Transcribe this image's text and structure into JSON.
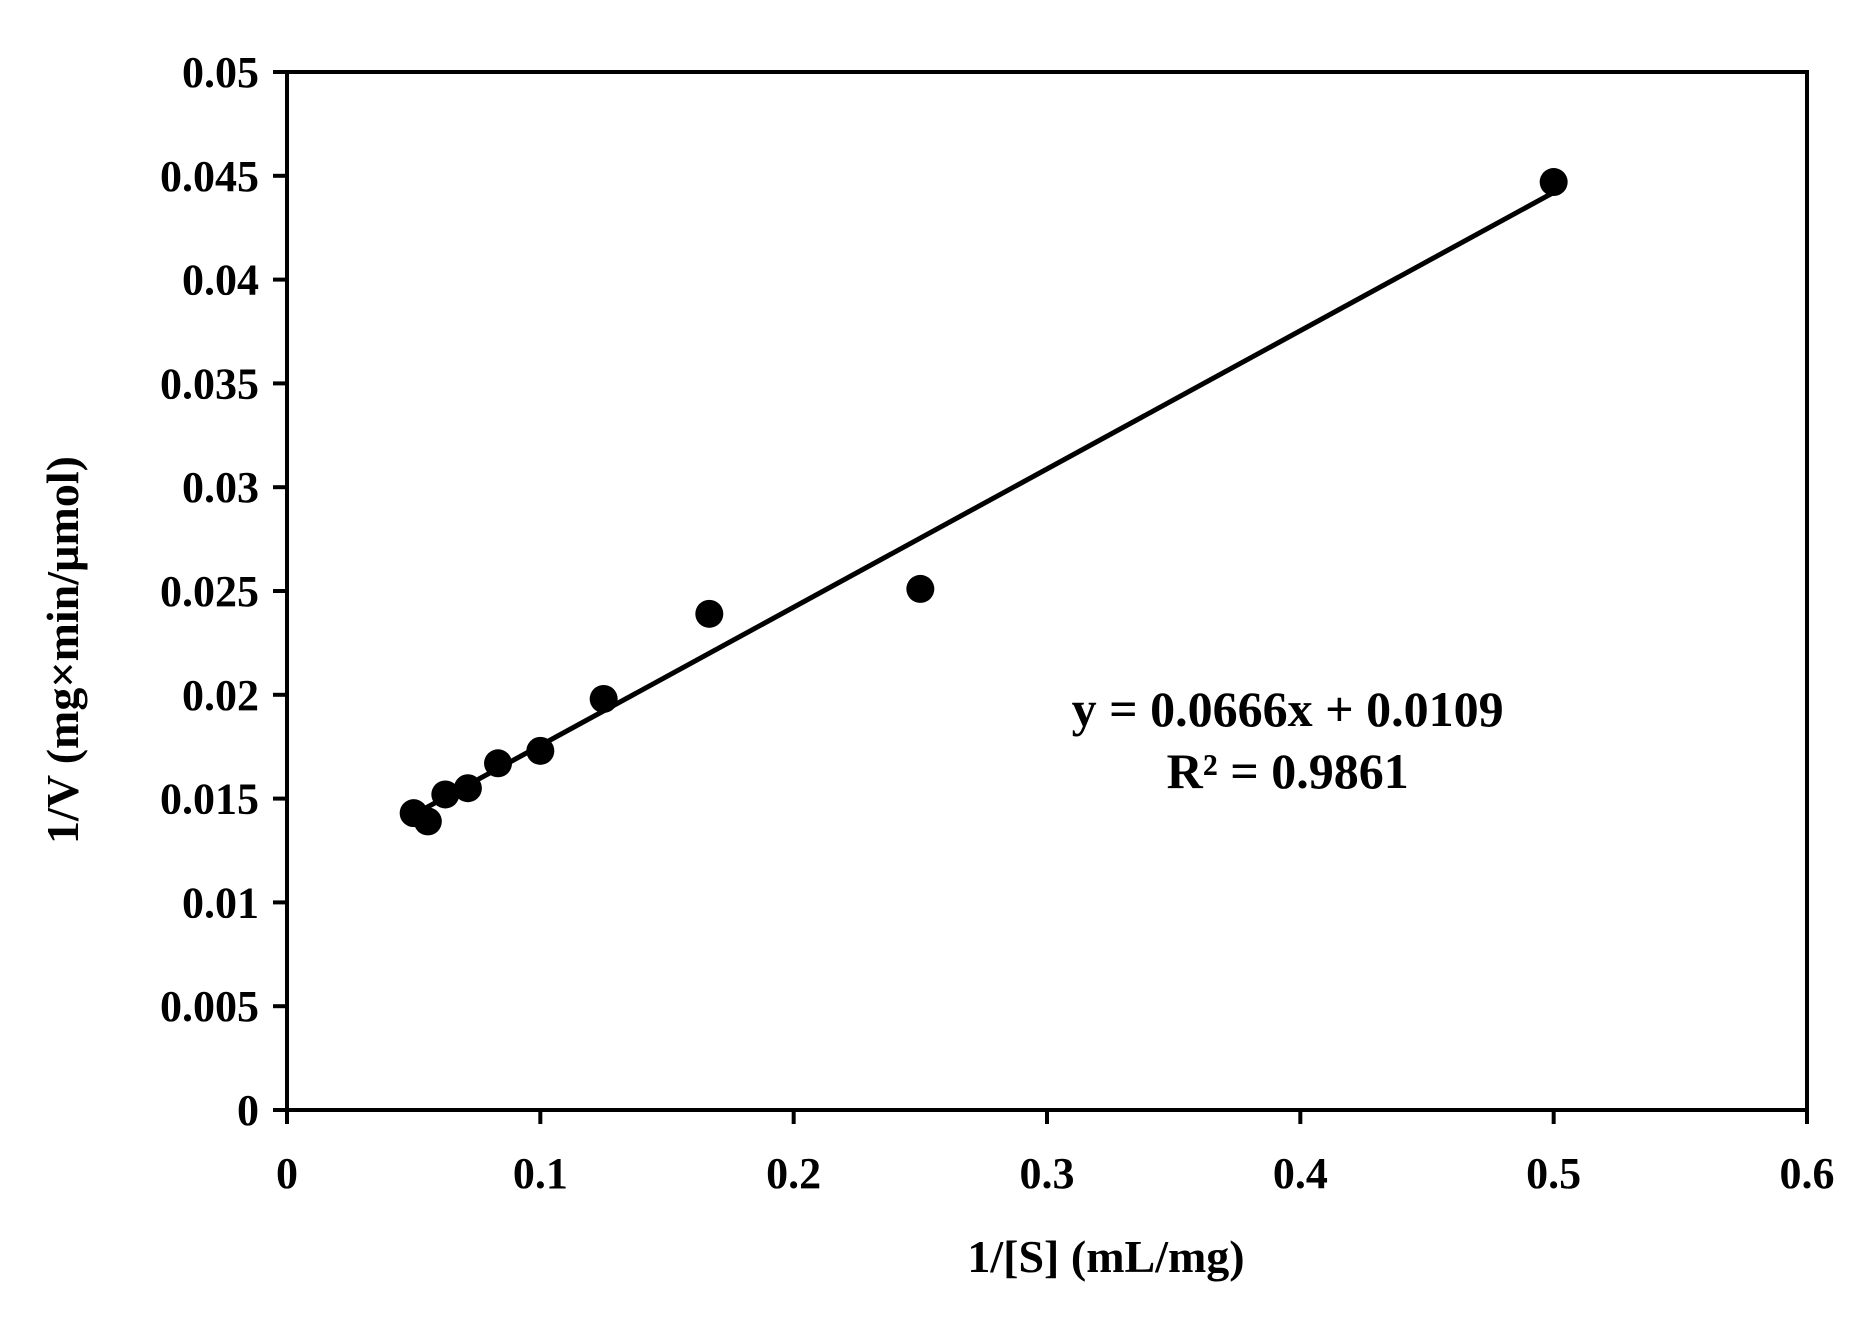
{
  "chart_data": {
    "type": "scatter",
    "title": "",
    "xlabel": "1/[S] (mL/mg)",
    "ylabel": "1/V (mg×min/µmol)",
    "xlim": [
      0,
      0.6
    ],
    "ylim": [
      0,
      0.05
    ],
    "x_ticks": [
      0,
      0.1,
      0.2,
      0.3,
      0.4,
      0.5,
      0.6
    ],
    "x_tick_labels": [
      "0",
      "0.1",
      "0.2",
      "0.3",
      "0.4",
      "0.5",
      "0.6"
    ],
    "y_ticks": [
      0,
      0.005,
      0.01,
      0.015,
      0.02,
      0.025,
      0.03,
      0.035,
      0.04,
      0.045,
      0.05
    ],
    "y_tick_labels": [
      "0",
      "0.005",
      "0.01",
      "0.015",
      "0.02",
      "0.025",
      "0.03",
      "0.035",
      "0.04",
      "0.045",
      "0.05"
    ],
    "grid": false,
    "legend": "none",
    "series": [
      {
        "points": [
          {
            "x": 0.05,
            "y": 0.0143
          },
          {
            "x": 0.0556,
            "y": 0.0139
          },
          {
            "x": 0.0625,
            "y": 0.0152
          },
          {
            "x": 0.0714,
            "y": 0.0155
          },
          {
            "x": 0.0833,
            "y": 0.0167
          },
          {
            "x": 0.1,
            "y": 0.0173
          },
          {
            "x": 0.125,
            "y": 0.0198
          },
          {
            "x": 0.1667,
            "y": 0.0239
          },
          {
            "x": 0.25,
            "y": 0.0251
          },
          {
            "x": 0.5,
            "y": 0.0447
          }
        ],
        "color": "#000000"
      }
    ],
    "trendline": {
      "type": "linear",
      "slope": 0.0666,
      "intercept": 0.0109,
      "x_range": [
        0.05,
        0.5
      ],
      "color": "#000000"
    },
    "annotations": [
      {
        "text": "y = 0.0666x + 0.0109",
        "x": 0.395,
        "y": 0.0185
      },
      {
        "text": "R² = 0.9861",
        "x": 0.395,
        "y": 0.0155
      }
    ]
  }
}
